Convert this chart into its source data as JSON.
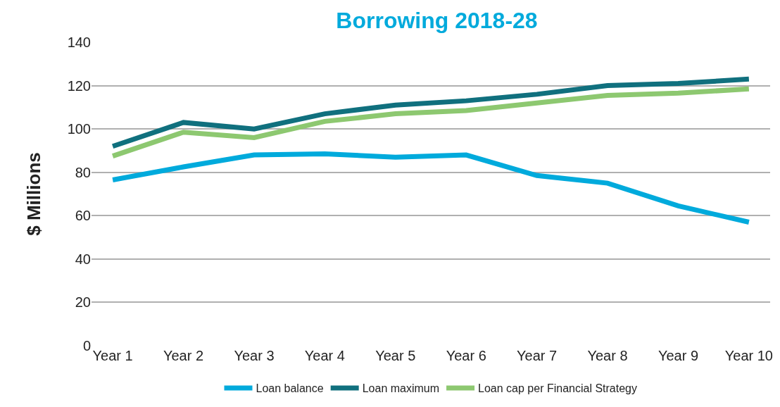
{
  "chart_data": {
    "type": "line",
    "title": "Borrowing 2018-28",
    "ylabel": "$ Millions",
    "categories": [
      "Year 1",
      "Year 2",
      "Year 3",
      "Year 4",
      "Year 5",
      "Year 6",
      "Year 7",
      "Year 8",
      "Year 9",
      "Year 10"
    ],
    "series": [
      {
        "name": "Loan balance",
        "color": "#00aadc",
        "values": [
          76.5,
          82.5,
          88,
          88.5,
          87,
          88,
          78.5,
          75,
          64.5,
          57
        ]
      },
      {
        "name": "Loan maximum",
        "color": "#10707e",
        "values": [
          92,
          103,
          100,
          107,
          111,
          113,
          116,
          120,
          121,
          123
        ]
      },
      {
        "name": "Loan cap per Financial Strategy",
        "color": "#8dc870",
        "values": [
          87.5,
          98.5,
          96,
          103.5,
          107,
          108.5,
          112,
          115.5,
          116.5,
          118.5
        ]
      }
    ],
    "ylim": [
      0,
      140
    ],
    "yticks": [
      0,
      20,
      40,
      60,
      80,
      100,
      120,
      140
    ],
    "grid": "y",
    "legend": "bottom",
    "marker": "none",
    "line_style": "solid"
  }
}
